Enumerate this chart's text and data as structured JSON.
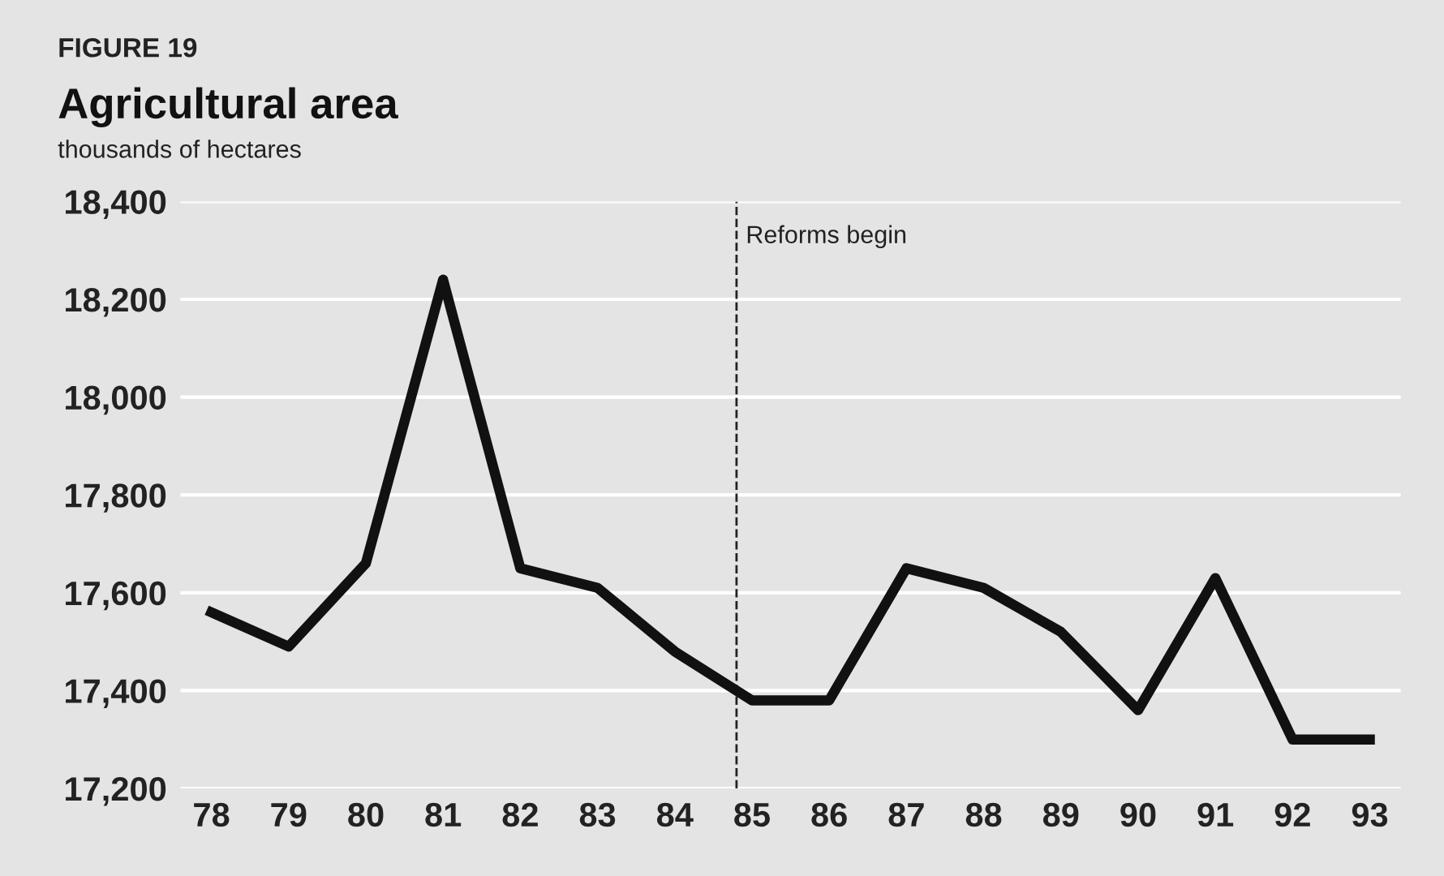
{
  "chart_data": {
    "type": "line",
    "title": "Agricultural area",
    "subtitle": "thousands of hectares",
    "annotations": [
      "FIGURE 19"
    ],
    "x": [
      78,
      79,
      80,
      81,
      82,
      83,
      84,
      85,
      86,
      87,
      88,
      89,
      90,
      91,
      92,
      93
    ],
    "series": [
      {
        "color": "#111111",
        "values": [
          17560,
          17490,
          17660,
          18240,
          17650,
          17610,
          17480,
          17380,
          17380,
          17650,
          17610,
          17520,
          17360,
          17630,
          17300,
          17300
        ]
      }
    ],
    "xlim": [
      77.6,
      93.4
    ],
    "xticks": [
      78,
      79,
      80,
      81,
      82,
      83,
      84,
      85,
      86,
      87,
      88,
      89,
      90,
      91,
      92,
      93
    ],
    "ylim": [
      17200,
      18400
    ],
    "yticks": [
      {
        "value": 17200,
        "label": "17,200"
      },
      {
        "value": 17400,
        "label": "17,400"
      },
      {
        "value": 17600,
        "label": "17,600"
      },
      {
        "value": 17800,
        "label": "17,800"
      },
      {
        "value": 18000,
        "label": "18,000"
      },
      {
        "value": 18200,
        "label": "18,200"
      },
      {
        "value": 18400,
        "label": "18,400"
      }
    ],
    "ref_lines": [
      {
        "axis": "x",
        "value": 84.8,
        "label": "Reforms begin",
        "color": "#222222",
        "line_style": "dashed"
      }
    ],
    "grid": "y",
    "marker": "none",
    "line_style": "solid"
  }
}
